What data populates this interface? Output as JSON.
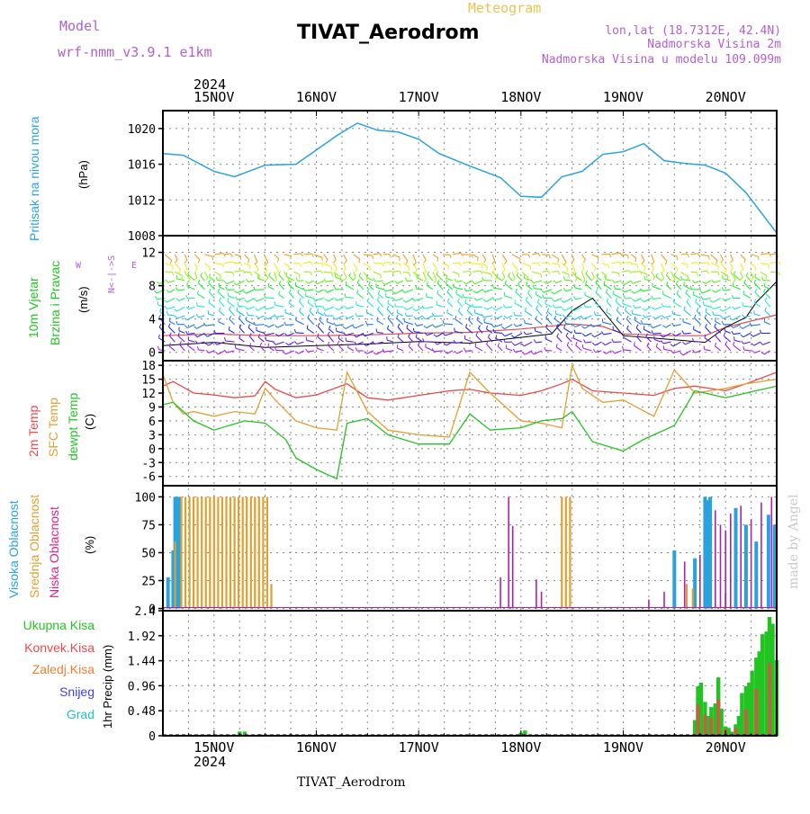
{
  "header": {
    "model_label": "Model",
    "model_name": "wrf-nmm_v3.9.1 e1km",
    "subtitle": "Meteogram",
    "title": "TIVAT_Aerodrom",
    "lonlat": "lon,lat (18.7312E, 42.4N)",
    "elevation": "Nadmorska Visina 2m",
    "model_elevation": "Nadmorska Visina u modelu 109.099m"
  },
  "top_axis": {
    "year": "2024",
    "days": [
      "15NOV",
      "16NOV",
      "17NOV",
      "18NOV",
      "19NOV",
      "20NOV"
    ]
  },
  "bottom_axis": {
    "year": "2024",
    "days": [
      "15NOV",
      "16NOV",
      "17NOV",
      "18NOV",
      "19NOV",
      "20NOV"
    ]
  },
  "footer": {
    "station": "TIVAT_Aerodrom"
  },
  "watermark": "made by Angel",
  "panel_labels": {
    "pressure": {
      "name": "Pritisak na nivou mora",
      "unit": "(hPa)"
    },
    "wind": {
      "name1": "10m Vjetar",
      "name2": "Brzina i Pravac",
      "unit": "(m/s)",
      "compass_ns": "N<-|->S",
      "compass_w": "W",
      "compass_e": "E"
    },
    "temp": {
      "name1": "2m Temp",
      "name2": "SFC Temp",
      "name3": "dewpt Temp",
      "unit": "(C)"
    },
    "cloud": {
      "name1": "Visoka Oblacnost",
      "name2": "Srednja Oblacnost",
      "name3": "Niska Oblacnost",
      "unit": "(%)"
    },
    "precip": {
      "name1": "Ukupna Kisa",
      "name2": "Konvek.Kisa",
      "name3": "Zaledj.Kisa",
      "name4": "Snijeg",
      "name5": "Grad",
      "unit": "1hr Precip (mm)"
    }
  },
  "colors": {
    "pressure": "#29a3e0",
    "temp_2m": "#e84a4a",
    "temp_sfc": "#e0a030",
    "dewpoint": "#22c422",
    "cloud_high": "#29a3e0",
    "cloud_mid": "#e0a030",
    "cloud_low": "#b020b0",
    "precip_total": "#22c422",
    "precip_conv": "#e84a4a",
    "precip_frz": "#f08030",
    "snow": "#4040e0",
    "hail": "#20c0c0"
  },
  "chart_data": [
    {
      "type": "line",
      "name": "pressure",
      "x_unit": "days since 15NOV 00UTC",
      "xlim": [
        -0.5,
        5.5
      ],
      "ylim": [
        1008,
        1022
      ],
      "yticks": [
        1008,
        1012,
        1016,
        1020
      ],
      "x": [
        -0.5,
        -0.3,
        0.0,
        0.2,
        0.5,
        0.8,
        1.0,
        1.2,
        1.4,
        1.6,
        1.8,
        2.0,
        2.2,
        2.5,
        2.8,
        3.0,
        3.2,
        3.4,
        3.6,
        3.8,
        4.0,
        4.2,
        4.4,
        4.6,
        4.8,
        5.0,
        5.2,
        5.5
      ],
      "values": [
        1017.2,
        1017.0,
        1015.2,
        1014.6,
        1015.9,
        1016.0,
        1017.6,
        1019.2,
        1020.6,
        1019.8,
        1019.6,
        1018.8,
        1017.2,
        1015.8,
        1014.5,
        1012.4,
        1012.3,
        1014.6,
        1015.2,
        1017.1,
        1017.4,
        1018.3,
        1016.4,
        1016.1,
        1015.9,
        1015.0,
        1012.8,
        1008.3
      ]
    },
    {
      "type": "line",
      "name": "wind",
      "ylim": [
        -1,
        14
      ],
      "yticks": [
        0,
        4,
        8,
        12
      ],
      "series": [
        {
          "name": "speed",
          "x": [
            -0.5,
            0.0,
            0.5,
            1.0,
            1.5,
            2.0,
            2.5,
            3.0,
            3.3,
            3.5,
            3.7,
            4.0,
            4.5,
            4.8,
            5.0,
            5.2,
            5.3,
            5.5
          ],
          "values": [
            0.8,
            1.2,
            0.6,
            0.8,
            1.0,
            1.3,
            1.1,
            1.8,
            2.2,
            5.0,
            6.5,
            2.0,
            1.5,
            1.2,
            3.0,
            4.2,
            6.0,
            8.5
          ]
        },
        {
          "name": "gust",
          "x": [
            -0.5,
            0.0,
            0.5,
            1.0,
            1.5,
            2.0,
            2.5,
            3.0,
            3.5,
            3.8,
            4.0,
            4.5,
            4.8,
            5.0,
            5.5
          ],
          "values": [
            2.0,
            2.2,
            2.0,
            2.0,
            2.1,
            2.3,
            2.4,
            2.8,
            3.4,
            3.1,
            2.2,
            2.0,
            2.0,
            3.0,
            4.5
          ]
        }
      ]
    },
    {
      "type": "line",
      "name": "temperature",
      "ylim": [
        -8,
        19
      ],
      "yticks": [
        -6,
        -3,
        0,
        3,
        6,
        9,
        12,
        15,
        18
      ],
      "series": [
        {
          "name": "2m Temp",
          "x": [
            -0.5,
            -0.4,
            -0.2,
            0.0,
            0.2,
            0.4,
            0.5,
            0.6,
            0.8,
            1.0,
            1.3,
            1.5,
            1.7,
            2.0,
            2.3,
            2.5,
            2.7,
            3.0,
            3.2,
            3.4,
            3.5,
            3.7,
            4.0,
            4.3,
            4.5,
            4.7,
            5.0,
            5.2,
            5.5
          ],
          "values": [
            13.5,
            14.5,
            12.0,
            11.6,
            11.0,
            11.4,
            14.5,
            12.8,
            11.0,
            11.6,
            14.0,
            11.0,
            10.5,
            11.5,
            12.5,
            12.8,
            12.0,
            11.5,
            12.5,
            14.0,
            15.0,
            12.5,
            12.0,
            11.5,
            13.0,
            13.5,
            12.5,
            14.0,
            16.5
          ]
        },
        {
          "name": "SFC Temp",
          "x": [
            -0.5,
            -0.4,
            -0.3,
            -0.2,
            0.0,
            0.2,
            0.4,
            0.5,
            0.6,
            0.8,
            1.0,
            1.2,
            1.3,
            1.5,
            1.7,
            2.0,
            2.3,
            2.5,
            2.7,
            3.0,
            3.2,
            3.4,
            3.5,
            3.6,
            3.8,
            4.0,
            4.3,
            4.5,
            4.7,
            5.0,
            5.2,
            5.5
          ],
          "values": [
            16.0,
            10.0,
            7.5,
            8.0,
            7.0,
            8.0,
            7.5,
            13.0,
            10.5,
            6.0,
            4.5,
            4.0,
            16.5,
            8.0,
            4.0,
            3.0,
            2.5,
            16.5,
            12.0,
            6.0,
            5.5,
            4.5,
            18.0,
            13.0,
            10.0,
            10.5,
            7.0,
            17.0,
            12.0,
            13.0,
            14.0,
            15.0
          ]
        },
        {
          "name": "dewpt Temp",
          "x": [
            -0.5,
            -0.4,
            -0.2,
            0.0,
            0.3,
            0.5,
            0.7,
            0.8,
            1.0,
            1.2,
            1.3,
            1.5,
            1.7,
            2.0,
            2.3,
            2.5,
            2.7,
            3.0,
            3.2,
            3.4,
            3.5,
            3.7,
            4.0,
            4.2,
            4.5,
            4.7,
            5.0,
            5.2,
            5.5
          ],
          "values": [
            9.5,
            10.0,
            6.0,
            4.0,
            6.0,
            5.5,
            2.0,
            -2.0,
            -4.5,
            -6.5,
            5.5,
            6.5,
            3.0,
            1.0,
            1.0,
            7.5,
            4.0,
            4.5,
            6.0,
            6.5,
            8.0,
            1.5,
            -0.5,
            2.0,
            5.0,
            12.5,
            11.0,
            12.0,
            13.5
          ]
        }
      ]
    },
    {
      "type": "bar",
      "name": "cloud",
      "ylim": [
        0,
        100
      ],
      "yticks": [
        0,
        25,
        50,
        75,
        100
      ],
      "series": [
        {
          "name": "Visoka Oblacnost",
          "x": [
            -0.45,
            -0.4,
            -0.38,
            -0.35,
            -0.33,
            4.5,
            4.8,
            4.83,
            4.85,
            4.7,
            5.1,
            5.2,
            5.3,
            5.42,
            5.48
          ],
          "values": [
            28,
            52,
            100,
            100,
            100,
            52,
            100,
            97,
            100,
            45,
            90,
            75,
            60,
            84,
            75
          ]
        },
        {
          "name": "Srednja Oblacnost",
          "x": [
            -0.38,
            -0.32,
            -0.28,
            -0.24,
            -0.2,
            -0.16,
            -0.12,
            -0.08,
            -0.04,
            0.0,
            0.04,
            0.08,
            0.12,
            0.16,
            0.2,
            0.24,
            0.28,
            0.32,
            0.36,
            0.4,
            0.44,
            0.48,
            0.52,
            0.56,
            3.4,
            3.44,
            3.48,
            4.62,
            4.68,
            5.0
          ],
          "values": [
            60,
            100,
            100,
            100,
            100,
            100,
            100,
            100,
            100,
            100,
            100,
            100,
            100,
            100,
            100,
            100,
            100,
            100,
            100,
            100,
            100,
            100,
            100,
            22,
            100,
            100,
            100,
            22,
            18,
            14
          ]
        },
        {
          "name": "Niska Oblacnost",
          "x": [
            2.8,
            2.88,
            2.92,
            3.15,
            3.2,
            4.25,
            4.4,
            4.6,
            4.75,
            4.9,
            4.95,
            5.0,
            5.05,
            5.15,
            5.25,
            5.35,
            5.45,
            5.5
          ],
          "values": [
            28,
            100,
            74,
            26,
            15,
            8,
            15,
            42,
            48,
            88,
            75,
            70,
            85,
            92,
            80,
            95,
            100,
            92
          ]
        }
      ]
    },
    {
      "type": "bar",
      "name": "precipitation",
      "ylim": [
        0,
        2.4
      ],
      "yticks": [
        0,
        0.48,
        0.96,
        1.44,
        1.92,
        2.4
      ],
      "series": [
        {
          "name": "Ukupna Kisa",
          "x": [
            0.25,
            0.3,
            0.45,
            0.55,
            3.0,
            3.04,
            4.7,
            4.73,
            4.76,
            4.8,
            4.83,
            4.86,
            4.9,
            4.93,
            4.96,
            5.0,
            5.03,
            5.06,
            5.1,
            5.13,
            5.16,
            5.2,
            5.23,
            5.26,
            5.3,
            5.33,
            5.36,
            5.4,
            5.43,
            5.46,
            5.5
          ],
          "values": [
            0.08,
            0.08,
            0.03,
            0.02,
            0.06,
            0.1,
            0.3,
            0.95,
            1.02,
            0.65,
            0.38,
            0.55,
            0.62,
            1.12,
            0.52,
            0.18,
            0.15,
            0.08,
            0.22,
            0.38,
            0.82,
            0.95,
            1.02,
            1.25,
            1.5,
            1.62,
            1.95,
            2.0,
            2.28,
            2.15,
            1.45
          ]
        },
        {
          "name": "Konvek.Kisa",
          "x": [
            4.73,
            4.8,
            4.86,
            4.93,
            5.0,
            5.1,
            5.2,
            5.3,
            5.43
          ],
          "values": [
            0.6,
            0.4,
            0.35,
            0.7,
            0.12,
            0.15,
            0.5,
            0.9,
            1.4
          ]
        }
      ]
    }
  ]
}
